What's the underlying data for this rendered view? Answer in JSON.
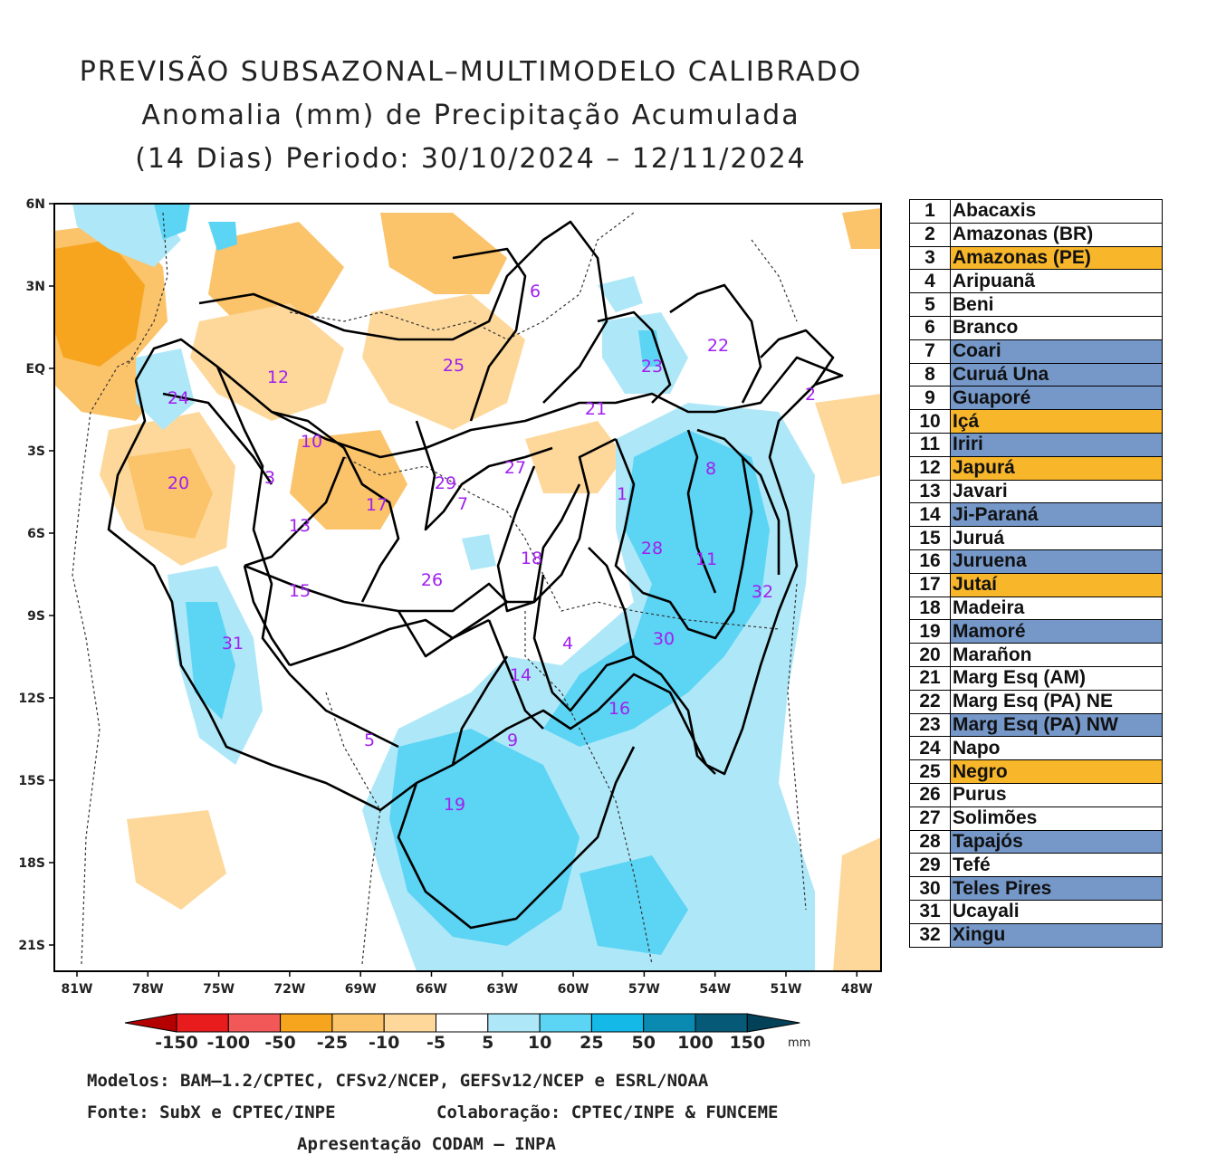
{
  "title": {
    "line1": "PREVISÃO SUBSAZONAL–MULTIMODELO CALIBRADO",
    "line2": "Anomalia (mm) de Precipitação Acumulada",
    "line3": "(14 Dias) Periodo: 30/10/2024 – 12/11/2024"
  },
  "map": {
    "lat_labels": [
      "6N",
      "3N",
      "EQ",
      "3S",
      "6S",
      "9S",
      "12S",
      "15S",
      "18S",
      "21S"
    ],
    "lon_labels": [
      "81W",
      "78W",
      "75W",
      "72W",
      "69W",
      "66W",
      "63W",
      "60W",
      "57W",
      "54W",
      "51W",
      "48W"
    ],
    "basin_labels": [
      {
        "id": "1",
        "text": "1"
      },
      {
        "id": "2",
        "text": "2"
      },
      {
        "id": "3",
        "text": "3"
      },
      {
        "id": "4",
        "text": "4"
      },
      {
        "id": "5",
        "text": "5"
      },
      {
        "id": "6",
        "text": "6"
      },
      {
        "id": "7",
        "text": "7"
      },
      {
        "id": "8",
        "text": "8"
      },
      {
        "id": "9",
        "text": "9"
      },
      {
        "id": "10",
        "text": "10"
      },
      {
        "id": "11",
        "text": "11"
      },
      {
        "id": "12",
        "text": "12"
      },
      {
        "id": "13",
        "text": "13"
      },
      {
        "id": "14",
        "text": "14"
      },
      {
        "id": "15",
        "text": "15"
      },
      {
        "id": "16",
        "text": "16"
      },
      {
        "id": "17",
        "text": "17"
      },
      {
        "id": "18",
        "text": "18"
      },
      {
        "id": "19",
        "text": "19"
      },
      {
        "id": "20",
        "text": "20"
      },
      {
        "id": "21",
        "text": "21"
      },
      {
        "id": "22",
        "text": "22"
      },
      {
        "id": "23",
        "text": "23"
      },
      {
        "id": "24",
        "text": "24"
      },
      {
        "id": "25",
        "text": "25"
      },
      {
        "id": "26",
        "text": "26"
      },
      {
        "id": "27",
        "text": "27"
      },
      {
        "id": "28",
        "text": "28"
      },
      {
        "id": "29",
        "text": "29"
      },
      {
        "id": "30",
        "text": "30"
      },
      {
        "id": "31",
        "text": "31"
      },
      {
        "id": "32",
        "text": "32"
      }
    ]
  },
  "colorbar": {
    "labels": [
      "-150",
      "-100",
      "-50",
      "-25",
      "-10",
      "-5",
      "5",
      "10",
      "25",
      "50",
      "100",
      "150"
    ],
    "unit": "mm",
    "colors": [
      "#b40000",
      "#e81c1c",
      "#f25858",
      "#f7a51e",
      "#fbc36a",
      "#fdd89a",
      "#ffffff",
      "#aee8f8",
      "#5cd4f4",
      "#14b9e8",
      "#0a8ab0",
      "#065a78",
      "#034158"
    ]
  },
  "legend": [
    {
      "num": "1",
      "name": "Abacaxis",
      "hl": ""
    },
    {
      "num": "2",
      "name": "Amazonas (BR)",
      "hl": ""
    },
    {
      "num": "3",
      "name": "Amazonas (PE)",
      "hl": "orange"
    },
    {
      "num": "4",
      "name": "Aripuanã",
      "hl": ""
    },
    {
      "num": "5",
      "name": "Beni",
      "hl": ""
    },
    {
      "num": "6",
      "name": "Branco",
      "hl": ""
    },
    {
      "num": "7",
      "name": "Coari",
      "hl": "blue"
    },
    {
      "num": "8",
      "name": "Curuá Una",
      "hl": "blue"
    },
    {
      "num": "9",
      "name": "Guaporé",
      "hl": "blue"
    },
    {
      "num": "10",
      "name": "Içá",
      "hl": "orange"
    },
    {
      "num": "11",
      "name": "Iriri",
      "hl": "blue"
    },
    {
      "num": "12",
      "name": "Japurá",
      "hl": "orange"
    },
    {
      "num": "13",
      "name": "Javari",
      "hl": ""
    },
    {
      "num": "14",
      "name": "Ji-Paraná",
      "hl": "blue"
    },
    {
      "num": "15",
      "name": "Juruá",
      "hl": ""
    },
    {
      "num": "16",
      "name": "Juruena",
      "hl": "blue"
    },
    {
      "num": "17",
      "name": "Jutaí",
      "hl": "orange"
    },
    {
      "num": "18",
      "name": "Madeira",
      "hl": ""
    },
    {
      "num": "19",
      "name": "Mamoré",
      "hl": "blue"
    },
    {
      "num": "20",
      "name": "Marañon",
      "hl": ""
    },
    {
      "num": "21",
      "name": "Marg Esq (AM)",
      "hl": ""
    },
    {
      "num": "22",
      "name": "Marg Esq (PA) NE",
      "hl": ""
    },
    {
      "num": "23",
      "name": "Marg Esq (PA) NW",
      "hl": "blue"
    },
    {
      "num": "24",
      "name": "Napo",
      "hl": ""
    },
    {
      "num": "25",
      "name": "Negro",
      "hl": "orange"
    },
    {
      "num": "26",
      "name": "Purus",
      "hl": ""
    },
    {
      "num": "27",
      "name": "Solimões",
      "hl": ""
    },
    {
      "num": "28",
      "name": "Tapajós",
      "hl": "blue"
    },
    {
      "num": "29",
      "name": "Tefé",
      "hl": ""
    },
    {
      "num": "30",
      "name": "Teles Pires",
      "hl": "blue"
    },
    {
      "num": "31",
      "name": "Ucayali",
      "hl": ""
    },
    {
      "num": "32",
      "name": "Xingu",
      "hl": "blue"
    }
  ],
  "footer": {
    "models": "Modelos: BAM–1.2/CPTEC, CFSv2/NCEP, GEFSv12/NCEP e ESRL/NOAA",
    "source": "Fonte: SubX e CPTEC/INPE",
    "collab": "Colaboração: CPTEC/INPE & FUNCEME",
    "presentation": "Apresentação CODAM – INPA"
  }
}
